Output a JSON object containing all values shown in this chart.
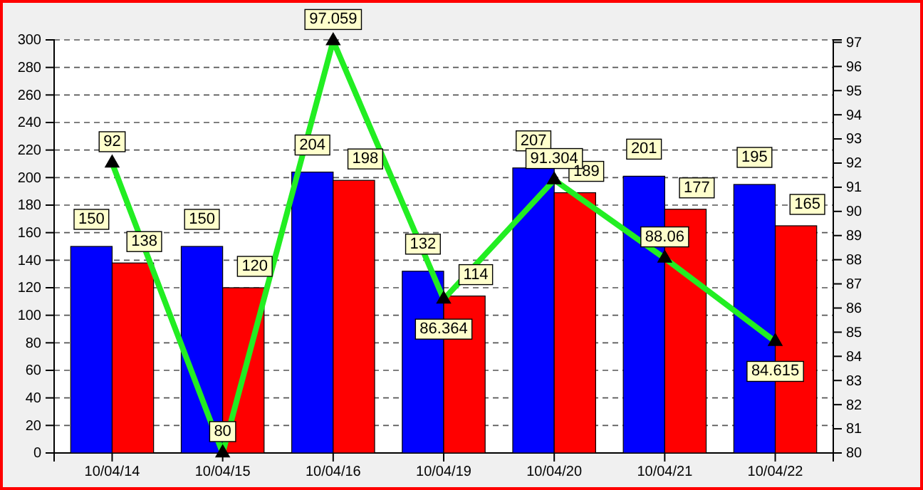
{
  "chart_data": {
    "type": "bar",
    "categories": [
      "10/04/14",
      "10/04/15",
      "10/04/16",
      "10/04/19",
      "10/04/20",
      "10/04/21",
      "10/04/22"
    ],
    "series": [
      {
        "color": "#0000ff",
        "values": [
          150,
          150,
          204,
          132,
          207,
          201,
          195
        ]
      },
      {
        "color": "#ff0000",
        "values": [
          138,
          120,
          198,
          114,
          189,
          177,
          165
        ]
      },
      {
        "type": "line",
        "axis": "y2",
        "color": "#22ee22",
        "marker": "triangle",
        "line_style": "solid",
        "values": [
          92,
          80,
          97.059,
          86.364,
          91.304,
          88.06,
          84.615
        ]
      }
    ],
    "ylim": [
      0,
      300
    ],
    "yticks": [
      0,
      20,
      40,
      60,
      80,
      100,
      120,
      140,
      160,
      180,
      200,
      220,
      240,
      260,
      280,
      300
    ],
    "y2lim": [
      80,
      97.1
    ],
    "y2ticks": [
      80,
      81,
      82,
      83,
      84,
      85,
      86,
      87,
      88,
      89,
      90,
      91,
      92,
      93,
      94,
      95,
      96,
      97
    ],
    "grid": "y",
    "data_labels": true
  }
}
